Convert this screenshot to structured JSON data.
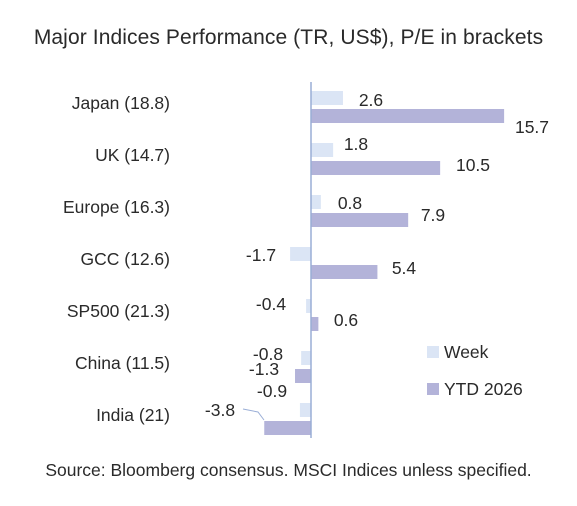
{
  "chart_data": {
    "type": "bar",
    "orientation": "horizontal",
    "title": "Major Indices Performance (TR, US$), P/E in brackets",
    "categories": [
      "Japan (18.8)",
      "UK (14.7)",
      "Europe (16.3)",
      "GCC (12.6)",
      "SP500 (21.3)",
      "China (11.5)",
      "India (21)"
    ],
    "series": [
      {
        "name": "Week",
        "values": [
          2.6,
          1.8,
          0.8,
          -1.7,
          -0.4,
          -0.8,
          -0.9
        ],
        "color": "#dbe5f5"
      },
      {
        "name": "YTD 2026",
        "values": [
          15.7,
          10.5,
          7.9,
          5.4,
          0.6,
          -1.3,
          -3.8
        ],
        "color": "#b3b3d9"
      }
    ],
    "data_labels": {
      "Week": [
        "2.6",
        "1.8",
        "0.8",
        "-1.7",
        "-0.4",
        "-0.8",
        "-0.9"
      ],
      "YTD 2026": [
        "15.7",
        "10.5",
        "7.9",
        "5.4",
        "0.6",
        "-1.3",
        "-3.8"
      ]
    },
    "legend_position": "right",
    "grid": false,
    "xlabel": "",
    "ylabel": "",
    "axis_color": "#9aaed6",
    "source": "Source: Bloomberg consensus. MSCI Indices unless specified."
  }
}
